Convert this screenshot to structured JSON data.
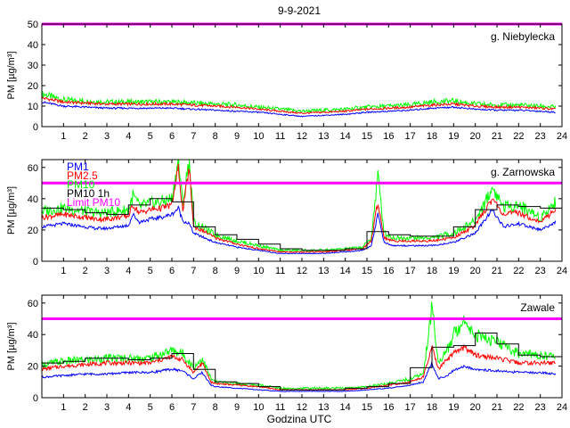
{
  "figure": {
    "title": "9-9-2021",
    "xlabel": "Godzina UTC"
  },
  "colors": {
    "pm1": "#0000ff",
    "pm25": "#ff0000",
    "pm10": "#00ff00",
    "pm10_1h": "#000000",
    "limit": "#ff00ff"
  },
  "chart_data": [
    {
      "type": "line",
      "station": "g. Niebylecka",
      "ylabel": "PM [µg/m³]",
      "xlim": [
        0,
        24
      ],
      "ylim": [
        0,
        50
      ],
      "xticks": [
        1,
        2,
        3,
        4,
        5,
        6,
        7,
        8,
        9,
        10,
        11,
        12,
        13,
        14,
        15,
        16,
        17,
        18,
        19,
        20,
        21,
        22,
        23,
        24
      ],
      "yticks": [
        0,
        10,
        20,
        30,
        40,
        50
      ],
      "limit_pm10": 50,
      "x": [
        0,
        1,
        2,
        3,
        4,
        5,
        6,
        7,
        8,
        9,
        10,
        11,
        12,
        13,
        14,
        15,
        16,
        17,
        18,
        19,
        20,
        21,
        22,
        23,
        23.7
      ],
      "series": [
        {
          "key": "pm1",
          "values": [
            12,
            10,
            9.5,
            9,
            9,
            9,
            9,
            8.5,
            8,
            7.5,
            7,
            6,
            5,
            5.5,
            6,
            7,
            7.5,
            8,
            9,
            9.5,
            8.5,
            8,
            8,
            7.5,
            7
          ]
        },
        {
          "key": "pm25",
          "values": [
            14,
            12,
            11.5,
            11,
            11,
            11,
            11,
            10.5,
            10,
            9.5,
            8.5,
            7.5,
            6.5,
            7,
            7.5,
            8.5,
            9,
            9.5,
            10.5,
            11,
            10,
            9.5,
            9.5,
            9,
            8.5
          ]
        },
        {
          "key": "pm10",
          "values": [
            16,
            13,
            12.5,
            12,
            12,
            12,
            12,
            11.5,
            11,
            10.5,
            9.5,
            8.5,
            7.5,
            8,
            8.5,
            9.5,
            10,
            10.5,
            12,
            12.5,
            11,
            10.5,
            10.5,
            10,
            9.5
          ]
        }
      ]
    },
    {
      "type": "line",
      "station": "g. Zarnowska",
      "ylabel": "PM [µg/m³]",
      "xlim": [
        0,
        24
      ],
      "ylim": [
        0,
        65
      ],
      "xticks": [
        1,
        2,
        3,
        4,
        5,
        6,
        7,
        8,
        9,
        10,
        11,
        12,
        13,
        14,
        15,
        16,
        17,
        18,
        19,
        20,
        21,
        22,
        23,
        24
      ],
      "yticks": [
        0,
        20,
        40,
        60
      ],
      "limit_pm10": 50,
      "legend": [
        "PM1",
        "PM2.5",
        "PM10",
        "PM10 1h",
        "Limit PM10"
      ],
      "x": [
        0,
        0.5,
        1,
        1.5,
        2,
        2.5,
        3,
        3.5,
        4,
        4.2,
        4.5,
        5,
        5.5,
        6,
        6.3,
        6.5,
        6.8,
        7,
        7.5,
        8,
        9,
        10,
        11,
        12,
        13,
        14,
        14.8,
        15.2,
        15.5,
        15.8,
        16.2,
        17,
        18,
        19,
        20,
        20.8,
        21.3,
        22,
        23,
        23.7
      ],
      "series": [
        {
          "key": "pm1",
          "values": [
            22,
            23,
            24,
            23,
            22,
            21,
            21,
            22,
            23,
            30,
            25,
            27,
            28,
            30,
            34,
            26,
            24,
            18,
            15,
            12,
            9,
            7,
            5,
            5,
            5,
            6,
            7,
            10,
            30,
            12,
            10,
            10,
            10,
            12,
            18,
            33,
            22,
            24,
            20,
            25
          ]
        },
        {
          "key": "pm25",
          "values": [
            28,
            29,
            30,
            29,
            28,
            27,
            27,
            28,
            29,
            36,
            31,
            33,
            34,
            36,
            60,
            32,
            60,
            22,
            19,
            15,
            11,
            8,
            6,
            6,
            6,
            7,
            8,
            13,
            38,
            15,
            13,
            13,
            13,
            15,
            23,
            40,
            30,
            31,
            25,
            33
          ]
        },
        {
          "key": "pm10",
          "values": [
            32,
            33,
            34,
            33,
            32,
            31,
            31,
            32,
            33,
            42,
            35,
            37,
            38,
            40,
            65,
            36,
            65,
            25,
            21,
            17,
            13,
            10,
            7,
            7,
            7,
            8,
            9,
            15,
            55,
            18,
            15,
            15,
            15,
            18,
            26,
            47,
            35,
            36,
            28,
            38
          ]
        }
      ],
      "pm10_1h": {
        "edges": [
          0,
          1,
          2,
          3,
          4,
          5,
          6,
          7,
          8,
          9,
          10,
          11,
          12,
          13,
          14,
          15,
          16,
          17,
          18,
          19,
          20,
          21,
          22,
          23
        ],
        "values": [
          34,
          33,
          31,
          30,
          36,
          40,
          38,
          22,
          17,
          14,
          11,
          8,
          7,
          7,
          8,
          19,
          17,
          16,
          16,
          22,
          33,
          36,
          35,
          34
        ]
      }
    },
    {
      "type": "line",
      "station": "Zawale",
      "ylabel": "PM [µg/m³]",
      "xlim": [
        0,
        24
      ],
      "ylim": [
        0,
        65
      ],
      "xticks": [
        1,
        2,
        3,
        4,
        5,
        6,
        7,
        8,
        9,
        10,
        11,
        12,
        13,
        14,
        15,
        16,
        17,
        18,
        19,
        20,
        21,
        22,
        23,
        24
      ],
      "yticks": [
        0,
        20,
        40,
        60
      ],
      "limit_pm10": 50,
      "x": [
        0,
        1,
        2,
        3,
        4,
        5,
        6,
        6.5,
        7,
        7.4,
        7.8,
        8,
        9,
        10,
        11,
        12,
        13,
        14,
        15,
        16,
        17,
        17.6,
        18,
        18.3,
        18.7,
        19,
        19.5,
        20,
        21,
        22,
        23,
        23.7
      ],
      "series": [
        {
          "key": "pm1",
          "values": [
            13,
            14,
            15,
            15,
            16,
            16,
            18,
            17,
            12,
            16,
            8,
            7,
            6,
            5,
            4,
            4,
            4,
            4,
            5,
            6,
            8,
            10,
            22,
            12,
            14,
            17,
            20,
            18,
            17,
            16,
            16,
            15
          ]
        },
        {
          "key": "pm25",
          "values": [
            18,
            20,
            21,
            22,
            22,
            22,
            26,
            24,
            16,
            22,
            10,
            9,
            8,
            7,
            5,
            5,
            5,
            5,
            6,
            8,
            10,
            13,
            32,
            18,
            24,
            28,
            32,
            27,
            25,
            22,
            22,
            22
          ]
        },
        {
          "key": "pm10",
          "values": [
            21,
            23,
            24,
            25,
            25,
            25,
            30,
            28,
            19,
            25,
            12,
            10,
            9,
            8,
            6,
            6,
            6,
            6,
            7,
            9,
            12,
            15,
            58,
            22,
            30,
            40,
            50,
            40,
            35,
            28,
            27,
            26
          ]
        }
      ],
      "pm10_1h": {
        "edges": [
          0,
          1,
          2,
          3,
          4,
          5,
          6,
          7,
          8,
          9,
          10,
          11,
          12,
          13,
          14,
          15,
          16,
          17,
          18,
          19,
          20,
          21,
          22,
          23
        ],
        "values": [
          22,
          23,
          25,
          25,
          24,
          25,
          28,
          18,
          10,
          9,
          7,
          5,
          5,
          5,
          6,
          7,
          9,
          19,
          32,
          33,
          41,
          34,
          27,
          26
        ]
      }
    }
  ]
}
